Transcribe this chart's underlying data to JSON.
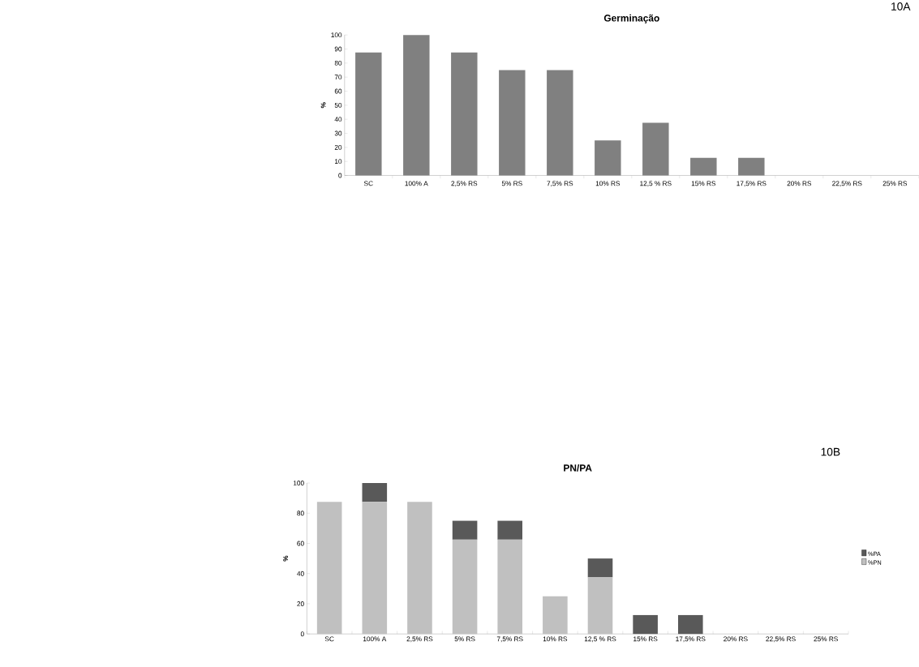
{
  "chart_data": [
    {
      "type": "bar",
      "title": "Germinação",
      "ylabel": "%",
      "annotations": [
        "10A"
      ],
      "categories": [
        "SC",
        "100% A",
        "2,5% RS",
        "5% RS",
        "7,5% RS",
        "10% RS",
        "12,5 % RS",
        "15% RS",
        "17,5% RS",
        "20%  RS",
        "22,5% RS",
        "25% RS"
      ],
      "values": [
        87.5,
        100,
        87.5,
        75,
        75,
        25,
        37.5,
        12.5,
        12.5,
        0,
        0,
        0
      ],
      "color": "#808080",
      "ylim": [
        0,
        100
      ],
      "yticks": [
        0,
        10,
        20,
        30,
        40,
        50,
        60,
        70,
        80,
        90,
        100
      ]
    },
    {
      "type": "bar",
      "title": "PN/PA",
      "ylabel": "%",
      "annotations": [
        "10B"
      ],
      "stacked": true,
      "legend": "right",
      "categories": [
        "SC",
        "100% A",
        "2,5% RS",
        "5% RS",
        "7,5% RS",
        "10% RS",
        "12,5 % RS",
        "15% RS",
        "17,5% RS",
        "20%  RS",
        "22,5% RS",
        "25% RS"
      ],
      "series": [
        {
          "name": "%PN",
          "color": "#c0c0c0",
          "values": [
            87.5,
            87.5,
            87.5,
            62.5,
            62.5,
            25,
            37.5,
            0,
            0,
            0,
            0,
            0
          ]
        },
        {
          "name": "%PA",
          "color": "#595959",
          "values": [
            0,
            12.5,
            0,
            12.5,
            12.5,
            0,
            12.5,
            12.5,
            12.5,
            0,
            0,
            0
          ]
        }
      ],
      "ylim": [
        0,
        100
      ],
      "yticks": [
        0,
        20,
        40,
        60,
        80,
        100
      ]
    }
  ]
}
